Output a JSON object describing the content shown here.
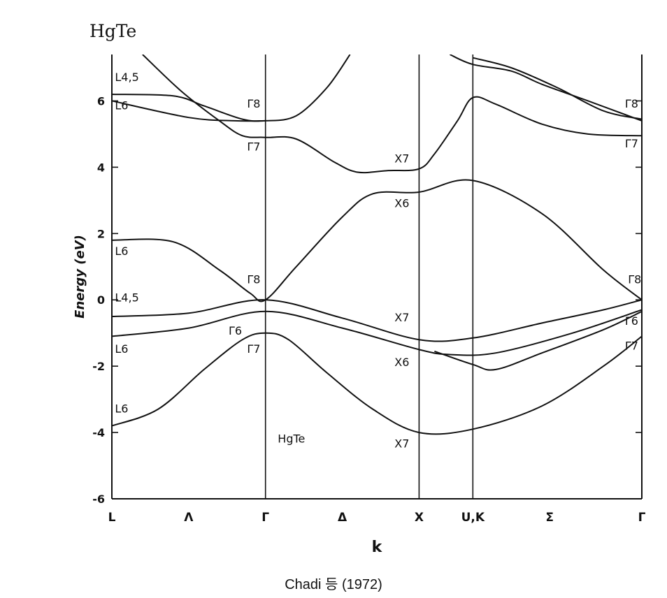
{
  "title": "HgTe",
  "caption": "Chadi 등 (1972)",
  "chart_data": {
    "type": "line",
    "xlabel": "k",
    "ylabel": "Energy (eV)",
    "ylim": [
      -6,
      7.4
    ],
    "yticks": [
      6,
      4,
      2,
      0,
      -2,
      -4,
      -6
    ],
    "ytick_labels": [
      "6",
      "4",
      "2",
      "0",
      "-2",
      "-4",
      "-6"
    ],
    "symmetry_points": [
      {
        "label": "L",
        "k": 0
      },
      {
        "label": "Λ",
        "k": 0.5
      },
      {
        "label": "Γ",
        "k": 1
      },
      {
        "label": "Δ",
        "k": 1.5
      },
      {
        "label": "X",
        "k": 2
      },
      {
        "label": "U,K",
        "k": 2.35
      },
      {
        "label": "Σ",
        "k": 2.85
      },
      {
        "label": "Γ",
        "k": 3.45
      }
    ],
    "vertical_lines_k": [
      1,
      2,
      2.35
    ],
    "bands": [
      {
        "points": [
          [
            0,
            -3.8
          ],
          [
            0.3,
            -3.3
          ],
          [
            0.6,
            -2.1
          ],
          [
            0.85,
            -1.2
          ],
          [
            1,
            -1.0
          ],
          [
            1.15,
            -1.2
          ],
          [
            1.4,
            -2.2
          ],
          [
            1.7,
            -3.3
          ],
          [
            2,
            -4.0
          ],
          [
            2.35,
            -3.9
          ],
          [
            2.8,
            -3.2
          ],
          [
            3.2,
            -2.0
          ],
          [
            3.45,
            -1.1
          ]
        ]
      },
      {
        "points": [
          [
            0,
            -1.1
          ],
          [
            0.5,
            -0.85
          ],
          [
            1,
            -0.35
          ],
          [
            1.5,
            -0.85
          ],
          [
            2,
            -1.5
          ],
          [
            2.2,
            -1.65
          ],
          [
            2.5,
            -1.6
          ],
          [
            3,
            -1.0
          ],
          [
            3.45,
            -0.3
          ]
        ]
      },
      {
        "points": [
          [
            2.1,
            -1.55
          ],
          [
            2.35,
            -1.95
          ],
          [
            2.5,
            -2.1
          ],
          [
            2.8,
            -1.6
          ],
          [
            3.2,
            -0.9
          ],
          [
            3.45,
            -0.35
          ]
        ]
      },
      {
        "points": [
          [
            0,
            -0.5
          ],
          [
            0.5,
            -0.4
          ],
          [
            1,
            0
          ],
          [
            1.5,
            -0.55
          ],
          [
            2,
            -1.2
          ],
          [
            2.35,
            -1.15
          ],
          [
            2.8,
            -0.7
          ],
          [
            3.2,
            -0.3
          ],
          [
            3.45,
            0
          ]
        ]
      },
      {
        "points": [
          [
            0,
            1.8
          ],
          [
            0.4,
            1.75
          ],
          [
            0.7,
            0.9
          ],
          [
            0.9,
            0.2
          ],
          [
            1,
            0
          ],
          [
            1.2,
            1.0
          ],
          [
            1.5,
            2.5
          ],
          [
            1.7,
            3.2
          ],
          [
            2,
            3.25
          ],
          [
            2.35,
            3.6
          ],
          [
            2.8,
            2.6
          ],
          [
            3.2,
            0.9
          ],
          [
            3.45,
            0
          ]
        ]
      },
      {
        "points": [
          [
            0,
            6.2
          ],
          [
            0.4,
            6.15
          ],
          [
            0.6,
            5.85
          ],
          [
            0.85,
            5.45
          ],
          [
            1,
            5.4
          ],
          [
            1.2,
            5.55
          ],
          [
            1.4,
            6.4
          ],
          [
            1.55,
            7.4
          ]
        ]
      },
      {
        "points": [
          [
            0,
            6.0
          ],
          [
            0.5,
            5.5
          ],
          [
            0.8,
            5.4
          ],
          [
            1,
            5.4
          ]
        ]
      },
      {
        "points": [
          [
            0.2,
            7.4
          ],
          [
            0.45,
            6.3
          ],
          [
            0.7,
            5.4
          ],
          [
            0.85,
            4.95
          ],
          [
            1,
            4.9
          ],
          [
            1.2,
            4.85
          ],
          [
            1.45,
            4.15
          ],
          [
            1.6,
            3.85
          ],
          [
            1.8,
            3.9
          ],
          [
            2,
            3.95
          ],
          [
            2.1,
            4.4
          ],
          [
            2.25,
            5.4
          ],
          [
            2.35,
            6.1
          ],
          [
            2.5,
            5.9
          ],
          [
            2.8,
            5.3
          ],
          [
            3.1,
            5.0
          ],
          [
            3.45,
            4.95
          ]
        ]
      },
      {
        "points": [
          [
            2.2,
            7.4
          ],
          [
            2.35,
            7.1
          ],
          [
            2.6,
            6.9
          ],
          [
            2.8,
            6.5
          ],
          [
            3.1,
            6.0
          ],
          [
            3.45,
            5.4
          ]
        ]
      },
      {
        "points": [
          [
            2.35,
            7.3
          ],
          [
            2.6,
            7.0
          ],
          [
            2.9,
            6.4
          ],
          [
            3.2,
            5.7
          ],
          [
            3.45,
            5.45
          ]
        ]
      }
    ],
    "annotations": [
      {
        "text": "L4,5",
        "k": 0.02,
        "e": 6.6
      },
      {
        "text": "L6",
        "k": 0.02,
        "e": 5.75
      },
      {
        "text": "L6",
        "k": 0.02,
        "e": 1.35
      },
      {
        "text": "L4,5",
        "k": 0.02,
        "e": -0.05
      },
      {
        "text": "L6",
        "k": 0.02,
        "e": -1.6
      },
      {
        "text": "L6",
        "k": 0.02,
        "e": -3.4
      },
      {
        "text": "Γ8",
        "k": 0.88,
        "e": 5.8
      },
      {
        "text": "Γ7",
        "k": 0.88,
        "e": 4.5
      },
      {
        "text": "Γ8",
        "k": 0.88,
        "e": 0.5
      },
      {
        "text": "Γ6",
        "k": 0.76,
        "e": -1.05
      },
      {
        "text": "Γ7",
        "k": 0.88,
        "e": -1.6
      },
      {
        "text": "X7",
        "k": 1.84,
        "e": 4.15
      },
      {
        "text": "X6",
        "k": 1.84,
        "e": 2.8
      },
      {
        "text": "X7",
        "k": 1.84,
        "e": -0.65
      },
      {
        "text": "X6",
        "k": 1.84,
        "e": -2.0
      },
      {
        "text": "X7",
        "k": 1.84,
        "e": -4.45
      },
      {
        "text": "Γ8",
        "k": 3.34,
        "e": 5.8
      },
      {
        "text": "Γ7",
        "k": 3.34,
        "e": 4.6
      },
      {
        "text": "Γ8",
        "k": 3.36,
        "e": 0.5
      },
      {
        "text": "Γ6",
        "k": 3.34,
        "e": -0.75
      },
      {
        "text": "Γ7",
        "k": 3.34,
        "e": -1.5
      },
      {
        "text": "HgTe",
        "k": 1.08,
        "e": -4.3
      }
    ]
  }
}
